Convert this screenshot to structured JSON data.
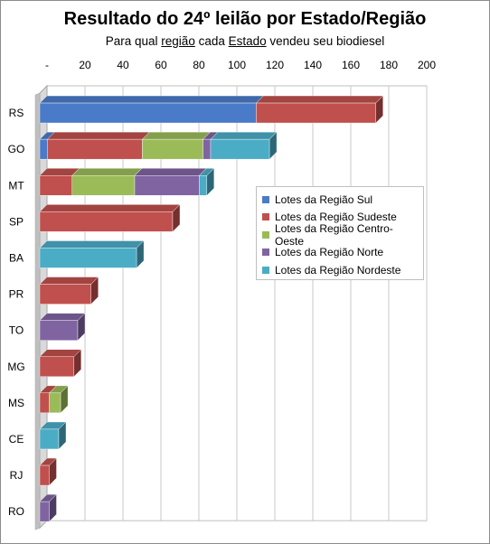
{
  "title": "Resultado do 24º leilão por Estado/Região",
  "subtitle": {
    "part1": "Para qual ",
    "word1": "região",
    "part2": " cada ",
    "word2": "Estado",
    "part3": " vendeu seu biodiesel"
  },
  "chart_data": {
    "type": "bar",
    "orientation": "horizontal",
    "stacked": true,
    "three_d": true,
    "categories": [
      "RS",
      "GO",
      "MT",
      "SP",
      "BA",
      "PR",
      "TO",
      "MG",
      "MS",
      "CE",
      "RJ",
      "RO"
    ],
    "series": [
      {
        "name": "Lotes da Região Sul",
        "color": "#4a7bc8",
        "values": [
          114,
          4,
          0,
          0,
          0,
          0,
          0,
          0,
          0,
          0,
          0,
          0
        ]
      },
      {
        "name": "Lotes da Região Sudeste",
        "color": "#c0504d",
        "values": [
          63,
          50,
          17,
          70,
          0,
          27,
          0,
          18,
          5,
          0,
          5,
          0
        ]
      },
      {
        "name": "Lotes da Região Centro-Oeste",
        "color": "#9bbb59",
        "values": [
          0,
          32,
          33,
          0,
          0,
          0,
          0,
          0,
          6,
          0,
          0,
          0
        ]
      },
      {
        "name": "Lotes da Região Norte",
        "color": "#8064a2",
        "values": [
          0,
          4,
          34,
          0,
          0,
          0,
          20,
          0,
          0,
          0,
          0,
          5
        ]
      },
      {
        "name": "Lotes da Região Nordeste",
        "color": "#4bacc6",
        "values": [
          0,
          31,
          4,
          0,
          51,
          0,
          0,
          0,
          0,
          10,
          0,
          0
        ]
      }
    ],
    "x_ticks": [
      "-",
      "20",
      "40",
      "60",
      "80",
      "100",
      "120",
      "140",
      "160",
      "180",
      "200"
    ],
    "xlim": [
      0,
      200
    ],
    "grid": true,
    "legend_position": "right"
  }
}
